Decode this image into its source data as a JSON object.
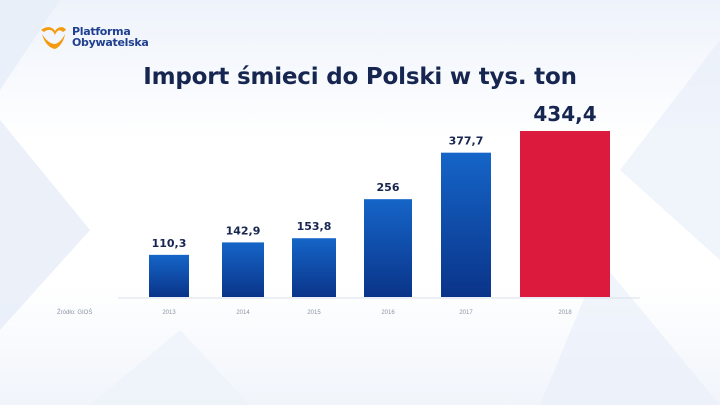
{
  "brand": {
    "line1": "Platforma",
    "line2": "Obywatelska",
    "logo_icon": "platforma-obywatelska-logo"
  },
  "colors": {
    "bar_blue_top": "#1565c8",
    "bar_blue_bottom": "#0a3489",
    "bar_highlight": "#dc1a3e",
    "title": "#172650",
    "highlight_label": "#dc1a3e"
  },
  "source_label": "Źródło: GIOŚ",
  "chart_data": {
    "type": "bar",
    "title": "Import śmieci do Polski w tys. ton",
    "categories": [
      "2013",
      "2014",
      "2015",
      "2016",
      "2017",
      "2018"
    ],
    "values": [
      110.3,
      142.9,
      153.8,
      256,
      377.7,
      434.4
    ],
    "value_labels": [
      "110,3",
      "142,9",
      "153,8",
      "256",
      "377,7",
      "434,4"
    ],
    "highlight_index": 5,
    "xlabel": "",
    "ylabel": "",
    "ylim": [
      0,
      434.4
    ],
    "grid": false,
    "legend": "none"
  }
}
